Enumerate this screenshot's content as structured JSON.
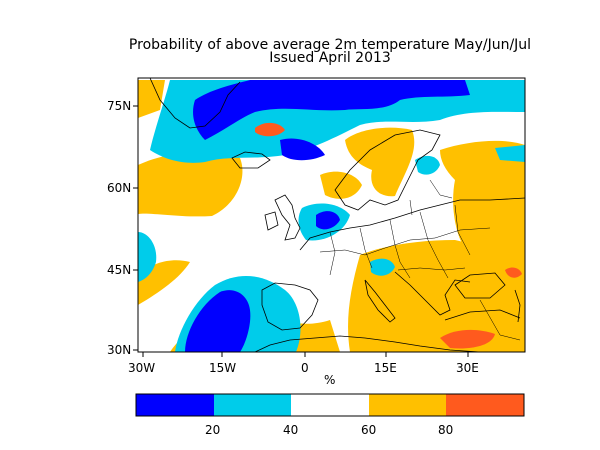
{
  "title": {
    "line1": "Probability of above average 2m temperature May/Jun/Jul",
    "line2": "Issued April 2013"
  },
  "map": {
    "lat_labels": [
      "75N",
      "60N",
      "45N",
      "30N"
    ],
    "lon_labels": [
      "30W",
      "15W",
      "0",
      "15E",
      "30E"
    ],
    "unit_label": "%",
    "categories": [
      {
        "range": "0-20",
        "color": "#0000ff"
      },
      {
        "range": "20-40",
        "color": "#00ccea"
      },
      {
        "range": "40-60",
        "color": "#ffffff"
      },
      {
        "range": "60-80",
        "color": "#ffc000"
      },
      {
        "range": "80-100",
        "color": "#ff5a1e"
      }
    ]
  },
  "colorbar": {
    "ticks": [
      "20",
      "40",
      "60",
      "80"
    ]
  }
}
